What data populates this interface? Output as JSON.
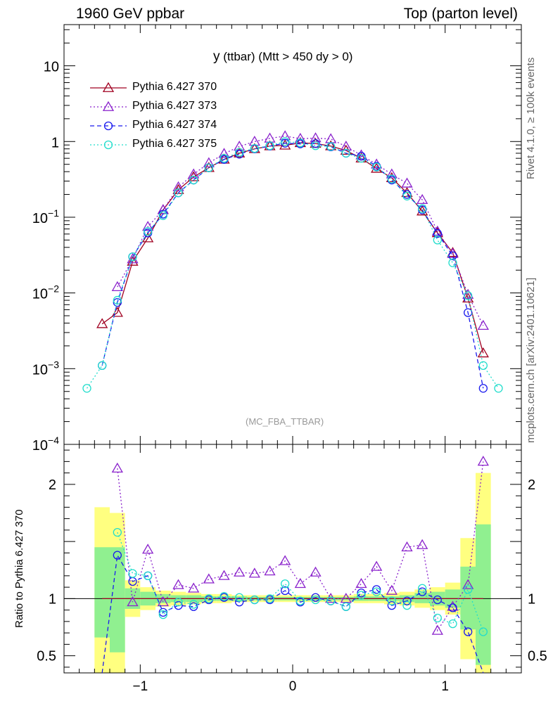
{
  "header": {
    "left": "1960 GeV ppbar",
    "right": "Top (parton level)"
  },
  "side_labels": {
    "rivet": "Rivet 4.1.0, ≥ 100k events",
    "mcplots": "mcplots.cern.ch [arXiv:2401.10621]"
  },
  "ratio_ylabel": "Ratio to Pythia 6.427 370",
  "title": {
    "main": "y",
    "sub": "(ttbar) (Mtt > 450 dy > 0)"
  },
  "watermark": "(MC_FBA_TTBAR)",
  "colors": {
    "s370": "#a00020",
    "s373": "#8a22cc",
    "s374": "#1a1aee",
    "s375": "#22ddcc",
    "band_yellow": "#ffff80",
    "band_green": "#90f090"
  },
  "chart_data": {
    "type": "line",
    "xlim": [
      -1.5,
      1.5
    ],
    "main_ylim": [
      0.0001,
      35
    ],
    "main_yscale": "log",
    "ratio_ylim": [
      0.35,
      2.35
    ],
    "x_ticks": [
      {
        "v": -1,
        "label": "−1"
      },
      {
        "v": 0,
        "label": "0"
      },
      {
        "v": 1,
        "label": "1"
      }
    ],
    "main_y_ticks": [
      {
        "v": 10,
        "base": "10",
        "exp": ""
      },
      {
        "v": 1,
        "base": "1",
        "exp": ""
      },
      {
        "v": 0.1,
        "base": "10",
        "exp": "−1"
      },
      {
        "v": 0.01,
        "base": "10",
        "exp": "−2"
      },
      {
        "v": 0.001,
        "base": "10",
        "exp": "−3"
      },
      {
        "v": 0.0001,
        "base": "10",
        "exp": "−4"
      }
    ],
    "ratio_y_ticks": [
      {
        "v": 0.5,
        "label": "0.5"
      },
      {
        "v": 1,
        "label": "1"
      },
      {
        "v": 2,
        "label": "2"
      }
    ],
    "series": [
      {
        "key": "s370",
        "name": "Pythia 6.427 370",
        "marker": "triangle",
        "fill": false,
        "dash": "solid",
        "x": [
          -1.25,
          -1.15,
          -1.05,
          -0.95,
          -0.85,
          -0.75,
          -0.65,
          -0.55,
          -0.45,
          -0.35,
          -0.25,
          -0.15,
          -0.05,
          0.05,
          0.15,
          0.25,
          0.35,
          0.45,
          0.55,
          0.65,
          0.75,
          0.85,
          0.95,
          1.05,
          1.15,
          1.25
        ],
        "y": [
          0.0039,
          0.0055,
          0.026,
          0.053,
          0.125,
          0.23,
          0.34,
          0.45,
          0.58,
          0.7,
          0.8,
          0.87,
          0.89,
          0.96,
          0.94,
          0.87,
          0.76,
          0.6,
          0.44,
          0.33,
          0.21,
          0.12,
          0.062,
          0.034,
          0.0085,
          0.0016
        ],
        "r": [
          1,
          1,
          1,
          1,
          1,
          1,
          1,
          1,
          1,
          1,
          1,
          1,
          1,
          1,
          1,
          1,
          1,
          1,
          1,
          1,
          1,
          1,
          1,
          1,
          1,
          1
        ]
      },
      {
        "key": "s373",
        "name": "Pythia 6.427 373",
        "marker": "triangle",
        "fill": false,
        "dash": "dot",
        "x": [
          -1.15,
          -1.05,
          -0.95,
          -0.85,
          -0.75,
          -0.65,
          -0.55,
          -0.45,
          -0.35,
          -0.25,
          -0.15,
          -0.05,
          0.05,
          0.15,
          0.25,
          0.35,
          0.45,
          0.55,
          0.65,
          0.75,
          0.85,
          0.95,
          1.05,
          1.15,
          1.25
        ],
        "y": [
          0.012,
          0.028,
          0.075,
          0.125,
          0.25,
          0.37,
          0.52,
          0.69,
          0.86,
          1.0,
          1.1,
          1.18,
          1.09,
          1.11,
          1.08,
          0.86,
          0.66,
          0.5,
          0.37,
          0.28,
          0.17,
          0.065,
          0.033,
          0.0095,
          0.0037
        ],
        "r": [
          2.14,
          0.97,
          1.43,
          0.97,
          1.12,
          1.09,
          1.17,
          1.2,
          1.23,
          1.22,
          1.24,
          1.33,
          1.13,
          1.23,
          1.0,
          1.0,
          1.13,
          1.28,
          1.07,
          1.45,
          1.47,
          0.72,
          0.93,
          1.12,
          2.2
        ]
      },
      {
        "key": "s374",
        "name": "Pythia 6.427 374",
        "marker": "circle",
        "fill": false,
        "dash": "dash",
        "x": [
          -1.25,
          -1.15,
          -1.05,
          -0.95,
          -0.85,
          -0.75,
          -0.65,
          -0.55,
          -0.45,
          -0.35,
          -0.25,
          -0.15,
          -0.05,
          0.05,
          0.15,
          0.25,
          0.35,
          0.45,
          0.55,
          0.65,
          0.75,
          0.85,
          0.95,
          1.05,
          1.15,
          1.25
        ],
        "y": [
          0.0011,
          0.0075,
          0.03,
          0.062,
          0.11,
          0.21,
          0.31,
          0.45,
          0.58,
          0.68,
          0.8,
          0.87,
          0.95,
          0.93,
          0.94,
          0.85,
          0.7,
          0.64,
          0.47,
          0.31,
          0.2,
          0.125,
          0.061,
          0.031,
          0.0055,
          0.00055
        ],
        "r": [
          0.28,
          1.38,
          1.15,
          1.2,
          0.88,
          0.94,
          0.93,
          0.99,
          1.01,
          0.97,
          0.99,
          0.99,
          1.07,
          0.97,
          1.01,
          0.98,
          0.93,
          1.05,
          1.08,
          0.94,
          0.98,
          1.06,
          0.99,
          0.92,
          0.71,
          0.34
        ]
      },
      {
        "key": "s375",
        "name": "Pythia 6.427 375",
        "marker": "circle",
        "fill": false,
        "dash": "dot",
        "x": [
          -1.35,
          -1.25,
          -1.15,
          -1.05,
          -0.95,
          -0.85,
          -0.75,
          -0.65,
          -0.55,
          -0.45,
          -0.35,
          -0.25,
          -0.15,
          -0.05,
          0.05,
          0.15,
          0.25,
          0.35,
          0.45,
          0.55,
          0.65,
          0.75,
          0.85,
          0.95,
          1.05,
          1.15,
          1.25,
          1.35
        ],
        "y": [
          0.00055,
          0.0011,
          0.008,
          0.03,
          0.065,
          0.105,
          0.21,
          0.31,
          0.45,
          0.6,
          0.72,
          0.81,
          0.88,
          1.0,
          0.96,
          0.88,
          0.86,
          0.7,
          0.6,
          0.46,
          0.32,
          0.19,
          0.13,
          0.05,
          0.025,
          0.0092,
          0.0011,
          0.00055
        ],
        "r": [
          null,
          null,
          1.58,
          1.22,
          1.2,
          0.86,
          0.97,
          0.95,
          1.0,
          1.02,
          1.01,
          0.99,
          1.0,
          1.13,
          0.98,
          0.99,
          0.98,
          0.93,
          1.03,
          1.06,
          0.98,
          0.94,
          1.09,
          0.83,
          0.78,
          1.08,
          0.71,
          null
        ]
      }
    ],
    "ref_bands": {
      "edges": [
        -1.3,
        -1.2,
        -1.1,
        -1.0,
        -0.9,
        -0.8,
        -0.7,
        -0.6,
        -0.5,
        -0.4,
        -0.3,
        -0.2,
        -0.1,
        0.0,
        0.1,
        0.2,
        0.3,
        0.4,
        0.5,
        0.6,
        0.7,
        0.8,
        0.9,
        1.0,
        1.1,
        1.2,
        1.3
      ],
      "yellow_lo": [
        0.3,
        0.3,
        0.84,
        0.9,
        0.93,
        0.94,
        0.95,
        0.96,
        0.96,
        0.97,
        0.97,
        0.97,
        0.97,
        0.97,
        0.97,
        0.97,
        0.97,
        0.96,
        0.96,
        0.95,
        0.94,
        0.92,
        0.9,
        0.86,
        0.47,
        0.3
      ],
      "yellow_hi": [
        1.8,
        1.75,
        1.16,
        1.1,
        1.07,
        1.06,
        1.05,
        1.04,
        1.04,
        1.03,
        1.03,
        1.03,
        1.03,
        1.03,
        1.03,
        1.03,
        1.03,
        1.04,
        1.04,
        1.05,
        1.06,
        1.08,
        1.1,
        1.14,
        1.53,
        2.1
      ],
      "green_lo": [
        0.66,
        0.53,
        0.91,
        0.94,
        0.96,
        0.97,
        0.97,
        0.98,
        0.98,
        0.98,
        0.985,
        0.985,
        0.985,
        0.985,
        0.985,
        0.985,
        0.985,
        0.98,
        0.98,
        0.98,
        0.97,
        0.96,
        0.94,
        0.92,
        0.73,
        0.42
      ],
      "green_hi": [
        1.45,
        1.45,
        1.09,
        1.06,
        1.04,
        1.03,
        1.03,
        1.02,
        1.02,
        1.02,
        1.015,
        1.015,
        1.015,
        1.015,
        1.015,
        1.015,
        1.015,
        1.02,
        1.02,
        1.02,
        1.03,
        1.05,
        1.06,
        1.08,
        1.28,
        1.65
      ]
    }
  }
}
